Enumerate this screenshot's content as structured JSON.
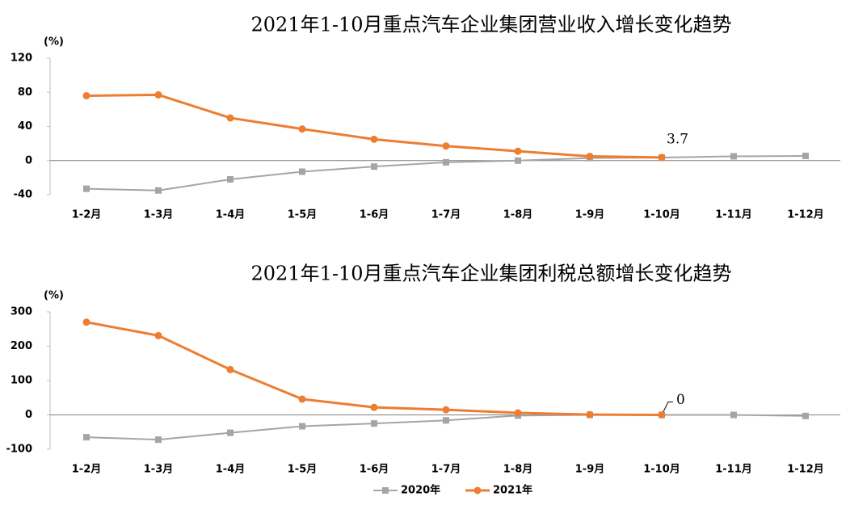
{
  "chart_data": [
    {
      "type": "line",
      "title": "2021年1-10月重点汽车企业集团营业收入增长变化趋势",
      "y_label": "(%)",
      "categories": [
        "1-2月",
        "1-3月",
        "1-4月",
        "1-5月",
        "1-6月",
        "1-7月",
        "1-8月",
        "1-9月",
        "1-10月",
        "1-11月",
        "1-12月"
      ],
      "series": [
        {
          "name": "2020年",
          "color": "#a5a5a5",
          "values": [
            -33,
            -35,
            -22,
            -13,
            -7,
            -2,
            0,
            3,
            3.5,
            5,
            5.5
          ]
        },
        {
          "name": "2021年",
          "color": "#ed7d31",
          "values": [
            76,
            77,
            50,
            37,
            25,
            17,
            11,
            5,
            3.7,
            null,
            null
          ],
          "value_labels": [
            null,
            null,
            null,
            null,
            null,
            null,
            null,
            null,
            "3.7",
            null,
            null
          ]
        }
      ],
      "ylim": [
        -40,
        120
      ],
      "yticks": [
        -40,
        0,
        40,
        80,
        120
      ]
    },
    {
      "type": "line",
      "title": "2021年1-10月重点汽车企业集团利税总额增长变化趋势",
      "y_label": "(%)",
      "categories": [
        "1-2月",
        "1-3月",
        "1-4月",
        "1-5月",
        "1-6月",
        "1-7月",
        "1-8月",
        "1-9月",
        "1-10月",
        "1-11月",
        "1-12月"
      ],
      "series": [
        {
          "color": "#a5a5a5",
          "values": [
            -65,
            -72,
            -52,
            -33,
            -25,
            -16,
            -2,
            0,
            0,
            0,
            -3
          ]
        },
        {
          "color": "#ed7d31",
          "values": [
            270,
            231,
            132,
            46,
            22,
            15,
            6,
            1,
            0,
            null,
            null
          ],
          "value_labels": [
            null,
            null,
            null,
            null,
            null,
            null,
            null,
            null,
            "0",
            null,
            null
          ]
        }
      ],
      "ylim": [
        -100,
        300
      ],
      "yticks": [
        -100,
        0,
        100,
        200,
        300
      ]
    }
  ]
}
